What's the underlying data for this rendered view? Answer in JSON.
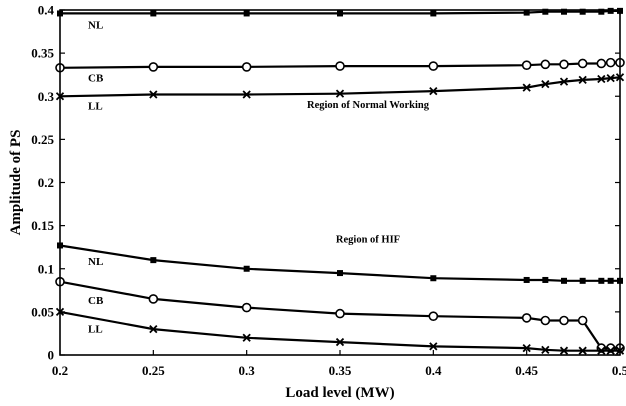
{
  "chart_data": {
    "type": "line",
    "xlabel": "Load level (MW)",
    "ylabel": "Amplitude of PS",
    "xlim": [
      0.2,
      0.5
    ],
    "ylim": [
      0,
      0.4
    ],
    "x_ticks": [
      0.2,
      0.25,
      0.3,
      0.35,
      0.4,
      0.45,
      0.5
    ],
    "x_tick_labels": [
      "0.2",
      "0.25",
      "0.3",
      "0.35",
      "0.4",
      "0.45",
      "0.5"
    ],
    "y_ticks": [
      0,
      0.05,
      0.1,
      0.15,
      0.2,
      0.25,
      0.3,
      0.35,
      0.4
    ],
    "y_tick_labels": [
      "0",
      "0.05",
      "0.1",
      "0.15",
      "0.2",
      "0.25",
      "0.3",
      "0.35",
      "0.4"
    ],
    "grid": false,
    "annotations": [
      {
        "text": "Region of Normal Working",
        "x": 0.365,
        "y": 0.291
      },
      {
        "text": "Region of HIF",
        "x": 0.365,
        "y": 0.135
      }
    ],
    "series": [
      {
        "name": "NL",
        "marker": "square",
        "x": [
          0.2,
          0.25,
          0.3,
          0.35,
          0.4,
          0.45,
          0.46,
          0.47,
          0.48,
          0.49,
          0.495,
          0.5
        ],
        "y": [
          0.396,
          0.396,
          0.396,
          0.396,
          0.396,
          0.397,
          0.398,
          0.398,
          0.398,
          0.398,
          0.399,
          0.399
        ],
        "label_at": [
          0.215,
          0.383
        ]
      },
      {
        "name": "CB",
        "marker": "circle",
        "x": [
          0.2,
          0.25,
          0.3,
          0.35,
          0.4,
          0.45,
          0.46,
          0.47,
          0.48,
          0.49,
          0.495,
          0.5
        ],
        "y": [
          0.333,
          0.334,
          0.334,
          0.335,
          0.335,
          0.336,
          0.337,
          0.337,
          0.338,
          0.338,
          0.339,
          0.339
        ],
        "label_at": [
          0.215,
          0.322
        ]
      },
      {
        "name": "LL",
        "marker": "cross",
        "x": [
          0.2,
          0.25,
          0.3,
          0.35,
          0.4,
          0.45,
          0.46,
          0.47,
          0.48,
          0.49,
          0.495,
          0.5
        ],
        "y": [
          0.3,
          0.302,
          0.302,
          0.303,
          0.306,
          0.31,
          0.314,
          0.317,
          0.319,
          0.32,
          0.321,
          0.322
        ],
        "label_at": [
          0.215,
          0.289
        ]
      },
      {
        "name": "NL",
        "marker": "square",
        "x": [
          0.2,
          0.25,
          0.3,
          0.35,
          0.4,
          0.45,
          0.46,
          0.47,
          0.48,
          0.49,
          0.495,
          0.5
        ],
        "y": [
          0.127,
          0.11,
          0.1,
          0.095,
          0.089,
          0.087,
          0.087,
          0.086,
          0.086,
          0.086,
          0.086,
          0.086
        ],
        "label_at": [
          0.215,
          0.109
        ]
      },
      {
        "name": "CB",
        "marker": "circle",
        "x": [
          0.2,
          0.25,
          0.3,
          0.35,
          0.4,
          0.45,
          0.46,
          0.47,
          0.48,
          0.49,
          0.495,
          0.5
        ],
        "y": [
          0.085,
          0.065,
          0.055,
          0.048,
          0.045,
          0.043,
          0.04,
          0.04,
          0.04,
          0.008,
          0.008,
          0.008
        ],
        "label_at": [
          0.215,
          0.064
        ]
      },
      {
        "name": "LL",
        "marker": "cross",
        "x": [
          0.2,
          0.25,
          0.3,
          0.35,
          0.4,
          0.45,
          0.46,
          0.47,
          0.48,
          0.49,
          0.495,
          0.5
        ],
        "y": [
          0.05,
          0.03,
          0.02,
          0.015,
          0.01,
          0.008,
          0.006,
          0.005,
          0.005,
          0.005,
          0.005,
          0.005
        ],
        "label_at": [
          0.215,
          0.031
        ]
      }
    ]
  }
}
